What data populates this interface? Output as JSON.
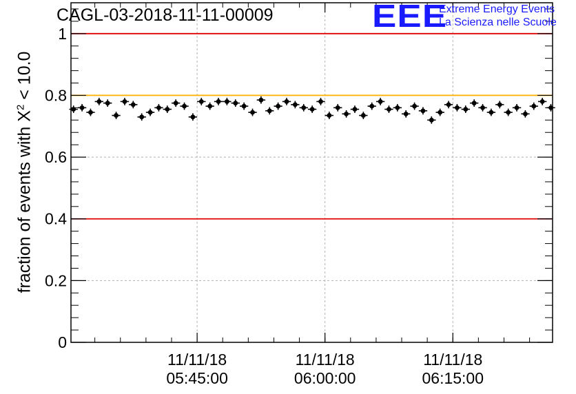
{
  "chart_data": {
    "type": "scatter",
    "title": "CAGL-03-2018-11-11-00009",
    "ylabel_prefix": "fraction of events with ",
    "ylabel_chi": "X",
    "ylabel_sup": "2",
    "ylabel_suffix": " < 10.0",
    "ylim": [
      0,
      1.1
    ],
    "yticks": [
      "0",
      "0.2",
      "0.4",
      "0.6",
      "0.8",
      "1"
    ],
    "ytick_values": [
      0,
      0.2,
      0.4,
      0.6,
      0.8,
      1.0
    ],
    "xticks": [
      {
        "date": "11/11/18",
        "time": "05:45:00",
        "minute": 45
      },
      {
        "date": "11/11/18",
        "time": "06:00:00",
        "minute": 60
      },
      {
        "date": "11/11/18",
        "time": "06:15:00",
        "minute": 75
      }
    ],
    "xlim_minutes": [
      30.2,
      86.7
    ],
    "grid": true,
    "reference_lines": [
      {
        "y": 1.0,
        "color": "#e00000"
      },
      {
        "y": 0.8,
        "color": "#ffb300"
      },
      {
        "y": 0.4,
        "color": "#e00000"
      }
    ],
    "series": [
      {
        "marker_color": "#000000",
        "x_minutes": [
          30.5,
          31.5,
          32.5,
          33.5,
          34.5,
          35.5,
          36.5,
          37.5,
          38.5,
          39.5,
          40.5,
          41.5,
          42.5,
          43.5,
          44.5,
          45.5,
          46.5,
          47.5,
          48.5,
          49.5,
          50.5,
          51.5,
          52.5,
          53.5,
          54.5,
          55.5,
          56.5,
          57.5,
          58.5,
          59.5,
          60.5,
          61.5,
          62.5,
          63.5,
          64.5,
          65.5,
          66.5,
          67.5,
          68.5,
          69.5,
          70.5,
          71.5,
          72.5,
          73.5,
          74.5,
          75.5,
          76.5,
          77.5,
          78.5,
          79.5,
          80.5,
          81.5,
          82.5,
          83.5,
          84.5,
          85.5,
          86.5
        ],
        "y": [
          0.755,
          0.76,
          0.745,
          0.78,
          0.775,
          0.735,
          0.78,
          0.77,
          0.73,
          0.745,
          0.76,
          0.755,
          0.775,
          0.765,
          0.73,
          0.78,
          0.765,
          0.78,
          0.78,
          0.775,
          0.765,
          0.745,
          0.785,
          0.75,
          0.765,
          0.78,
          0.77,
          0.76,
          0.755,
          0.78,
          0.735,
          0.76,
          0.74,
          0.755,
          0.735,
          0.765,
          0.78,
          0.755,
          0.76,
          0.74,
          0.765,
          0.75,
          0.72,
          0.745,
          0.77,
          0.76,
          0.755,
          0.775,
          0.76,
          0.745,
          0.77,
          0.745,
          0.76,
          0.74,
          0.765,
          0.78,
          0.76
        ],
        "y_err": 0.012,
        "x_err_minutes": 0.5
      }
    ]
  },
  "logo": {
    "mark": "EEE",
    "line1": "Extreme Energy Events",
    "line2": "La Scienza nelle Scuole"
  }
}
